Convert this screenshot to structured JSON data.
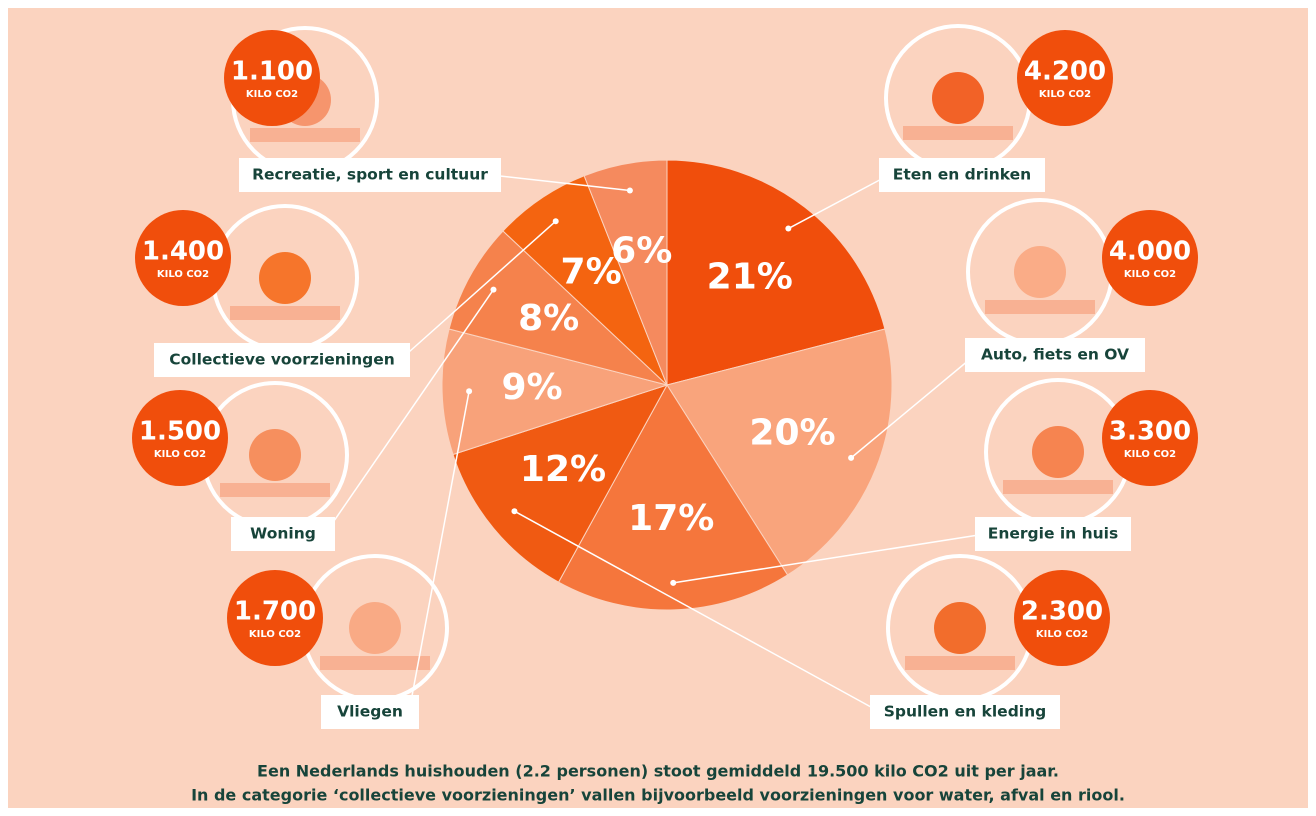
{
  "chart_data": {
    "type": "pie",
    "categories": [
      "Eten en drinken",
      "Auto, fiets en OV",
      "Energie in huis",
      "Spullen en kleding",
      "Vliegen",
      "Woning",
      "Collectieve voorzieningen",
      "Recreatie, sport en cultuur"
    ],
    "values": [
      21,
      20,
      17,
      12,
      9,
      8,
      7,
      6
    ],
    "value_labels": [
      "21%",
      "20%",
      "17%",
      "12%",
      "9%",
      "8%",
      "7%",
      "6%"
    ],
    "colors": [
      "#f04e0c",
      "#f9a47c",
      "#f5763c",
      "#f05a12",
      "#f8a27a",
      "#f5824c",
      "#f46410",
      "#f58a5e"
    ],
    "kilo_values": [
      4200,
      4000,
      3300,
      2300,
      1700,
      1500,
      1400,
      1100
    ],
    "kilo_labels": [
      "4.200",
      "4.000",
      "3.300",
      "2.300",
      "1.700",
      "1.500",
      "1.400",
      "1.100"
    ],
    "kilo_unit": "KILO CO2",
    "notes": [
      "Een Nederlands huishouden (2.2 personen) stoot gemiddeld 19.500 kilo CO2 uit per jaar.",
      "In de categorie ‘collectieve voorzieningen’ vallen bijvoorbeeld voorzieningen voor water, afval en riool."
    ]
  }
}
